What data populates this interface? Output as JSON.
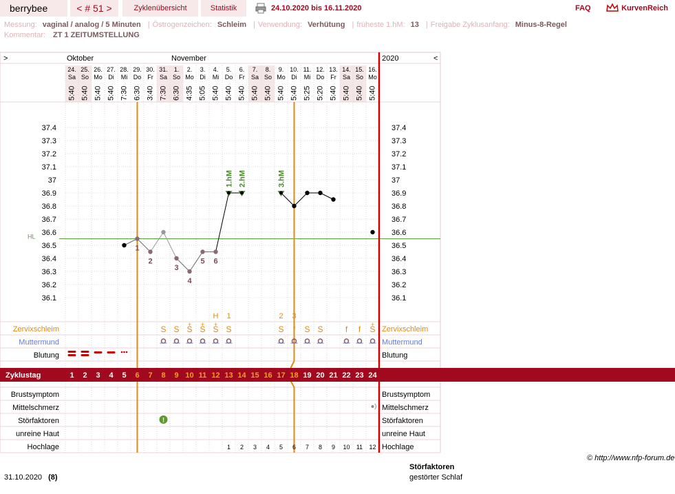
{
  "header": {
    "app_name": "berrybee",
    "cycle_label": "< # 51 >",
    "tab_cycles": "Zyklenübersicht",
    "tab_stats": "Statistik",
    "date_range": "24.10.2020 bis 16.11.2020",
    "faq": "FAQ",
    "brand": "KurvenReich"
  },
  "info_line1": [
    {
      "label": "Messung:",
      "value": "vaginal / analog / 5 Minuten"
    },
    {
      "label": "Östrogenzeichen:",
      "value": "Schleim"
    },
    {
      "label": "Verwendung:",
      "value": "Verhütung"
    },
    {
      "label": "früheste 1.hM:",
      "value": "13"
    },
    {
      "label": "Freigabe Zyklusanfang:",
      "value": "Minus-8-Regel"
    }
  ],
  "info_line2": {
    "label": "Kommentar:",
    "value": "ZT 1 ZEITUMSTELLUNG"
  },
  "nav": {
    "prev": ">",
    "next": "<",
    "year": "2020"
  },
  "months": [
    {
      "name": "Oktober",
      "start": 0
    },
    {
      "name": "November",
      "start": 8
    }
  ],
  "days": [
    {
      "date": "24.",
      "wd": "Sa",
      "time": "5:40",
      "we": true,
      "cd": "1"
    },
    {
      "date": "25.",
      "wd": "So",
      "time": "5:40",
      "we": true,
      "cd": "2"
    },
    {
      "date": "26.",
      "wd": "Mo",
      "time": "5:40",
      "we": false,
      "cd": "3"
    },
    {
      "date": "27.",
      "wd": "Di",
      "time": "5:40",
      "we": false,
      "cd": "4"
    },
    {
      "date": "28.",
      "wd": "Mi",
      "time": "7:30",
      "we": false,
      "cd": "5"
    },
    {
      "date": "29.",
      "wd": "Do",
      "time": "6:30",
      "we": false,
      "cd": "6"
    },
    {
      "date": "30.",
      "wd": "Fr",
      "time": "3:40",
      "we": false,
      "cd": "7"
    },
    {
      "date": "31.",
      "wd": "Sa",
      "time": "7:30",
      "we": true,
      "cd": "8"
    },
    {
      "date": "1.",
      "wd": "So",
      "time": "6:30",
      "we": true,
      "cd": "9"
    },
    {
      "date": "2.",
      "wd": "Mo",
      "time": "4:35",
      "we": false,
      "cd": "10"
    },
    {
      "date": "3.",
      "wd": "Di",
      "time": "5:05",
      "we": false,
      "cd": "11"
    },
    {
      "date": "4.",
      "wd": "Mi",
      "time": "5:40",
      "we": false,
      "cd": "12"
    },
    {
      "date": "5.",
      "wd": "Do",
      "time": "5:40",
      "we": false,
      "cd": "13"
    },
    {
      "date": "6.",
      "wd": "Fr",
      "time": "5:40",
      "we": false,
      "cd": "14"
    },
    {
      "date": "7.",
      "wd": "Sa",
      "time": "5:40",
      "we": true,
      "cd": "15"
    },
    {
      "date": "8.",
      "wd": "So",
      "time": "5:40",
      "we": true,
      "cd": "16"
    },
    {
      "date": "9.",
      "wd": "Mo",
      "time": "5:40",
      "we": false,
      "cd": "17"
    },
    {
      "date": "10.",
      "wd": "Di",
      "time": "5:40",
      "we": false,
      "cd": "18"
    },
    {
      "date": "11.",
      "wd": "Mi",
      "time": "5:25",
      "we": false,
      "cd": "19"
    },
    {
      "date": "12.",
      "wd": "Do",
      "time": "5:20",
      "we": false,
      "cd": "20"
    },
    {
      "date": "13.",
      "wd": "Fr",
      "time": "5:40",
      "we": false,
      "cd": "21"
    },
    {
      "date": "14.",
      "wd": "Sa",
      "time": "5:40",
      "we": true,
      "cd": "22"
    },
    {
      "date": "15.",
      "wd": "So",
      "time": "5:40",
      "we": true,
      "cd": "23"
    },
    {
      "date": "16.",
      "wd": "Mo",
      "time": "5:40",
      "we": false,
      "cd": "24"
    }
  ],
  "chart_data": {
    "type": "line",
    "x": [
      1,
      2,
      3,
      4,
      5,
      6,
      7,
      8,
      9,
      10,
      11,
      12,
      13,
      14,
      15,
      16,
      17,
      18,
      19,
      20,
      21,
      22,
      23,
      24
    ],
    "temperatures": [
      null,
      null,
      null,
      null,
      36.5,
      36.55,
      36.45,
      36.6,
      36.4,
      36.3,
      36.45,
      36.45,
      36.9,
      36.9,
      null,
      null,
      36.9,
      36.8,
      36.9,
      36.9,
      36.85,
      null,
      null,
      36.6
    ],
    "excluded": [
      false,
      false,
      false,
      false,
      false,
      false,
      false,
      true,
      false,
      false,
      false,
      false,
      false,
      false,
      false,
      false,
      false,
      false,
      false,
      false,
      false,
      false,
      false,
      false
    ],
    "yticks": [
      "37.4",
      "37.3",
      "37.2",
      "37.1",
      "37",
      "36.9",
      "36.8",
      "36.7",
      "36.6",
      "36.5",
      "36.4",
      "36.3",
      "36.2",
      "36.1"
    ],
    "ylim": [
      36.0,
      37.5
    ],
    "coverline": {
      "label": "HL",
      "value": 36.55
    },
    "low_labels": [
      {
        "day": 6,
        "text": "1"
      },
      {
        "day": 7,
        "text": "2"
      },
      {
        "day": 9,
        "text": "3"
      },
      {
        "day": 10,
        "text": "4"
      },
      {
        "day": 11,
        "text": "5"
      },
      {
        "day": 12,
        "text": "6"
      }
    ],
    "high_labels": [
      {
        "day": 13,
        "text": "1.hM"
      },
      {
        "day": 14,
        "text": "2.hM"
      },
      {
        "day": 17,
        "text": "3.hM"
      }
    ],
    "mucus_marks": [
      {
        "day": 12,
        "text": "H"
      },
      {
        "day": 13,
        "text": "1"
      },
      {
        "day": 17,
        "text": "2"
      },
      {
        "day": 18,
        "text": "3"
      }
    ],
    "vertical_lines": [
      5.5,
      17.5
    ],
    "colors": {
      "temp_line": "#000000",
      "low_label": "#7a4a50",
      "high_label": "#4a8a2a",
      "coverline": "#5aa040",
      "accent": "#a10a1e",
      "mucus": "#e08a10",
      "cervix": "#6a7ad0"
    }
  },
  "rows": {
    "mucus": "Zervixschleim",
    "cervix": "Muttermund",
    "bleeding": "Blutung",
    "cycleday": "Zyklustag",
    "breast": "Brustsymptom",
    "midpain": "Mittelschmerz",
    "disturb": "Störfaktoren",
    "skin": "unreine Haut",
    "high": "Hochlage"
  },
  "mucus_values": [
    "",
    "",
    "",
    "",
    "",
    "",
    "",
    "S",
    "S",
    "S+",
    "S+",
    "S+",
    "S",
    "",
    "",
    "",
    "S",
    "f",
    "S",
    "S",
    "",
    "f",
    "f",
    "S+"
  ],
  "cervix_days": [
    8,
    9,
    10,
    11,
    12,
    13,
    17,
    18,
    19,
    20,
    22,
    23,
    24
  ],
  "bleeding": [
    {
      "day": 1,
      "type": "heavy"
    },
    {
      "day": 2,
      "type": "heavy"
    },
    {
      "day": 3,
      "type": "medium"
    },
    {
      "day": 4,
      "type": "medium"
    },
    {
      "day": 5,
      "type": "spot"
    }
  ],
  "hochlage": [
    "",
    "",
    "",
    "",
    "",
    "",
    "",
    "",
    "",
    "",
    "",
    "",
    "1",
    "2",
    "3",
    "4",
    "5",
    "6",
    "7",
    "8",
    "9",
    "10",
    "11",
    "12"
  ],
  "disturb_days": [
    8
  ],
  "midpain_days": [
    24
  ],
  "footer": {
    "copyright": "© http://www.nfp-forum.de",
    "date": "31.10.2020",
    "count": "(8)",
    "disturb_title": "Störfaktoren",
    "disturb_text": "gestörter Schlaf"
  }
}
